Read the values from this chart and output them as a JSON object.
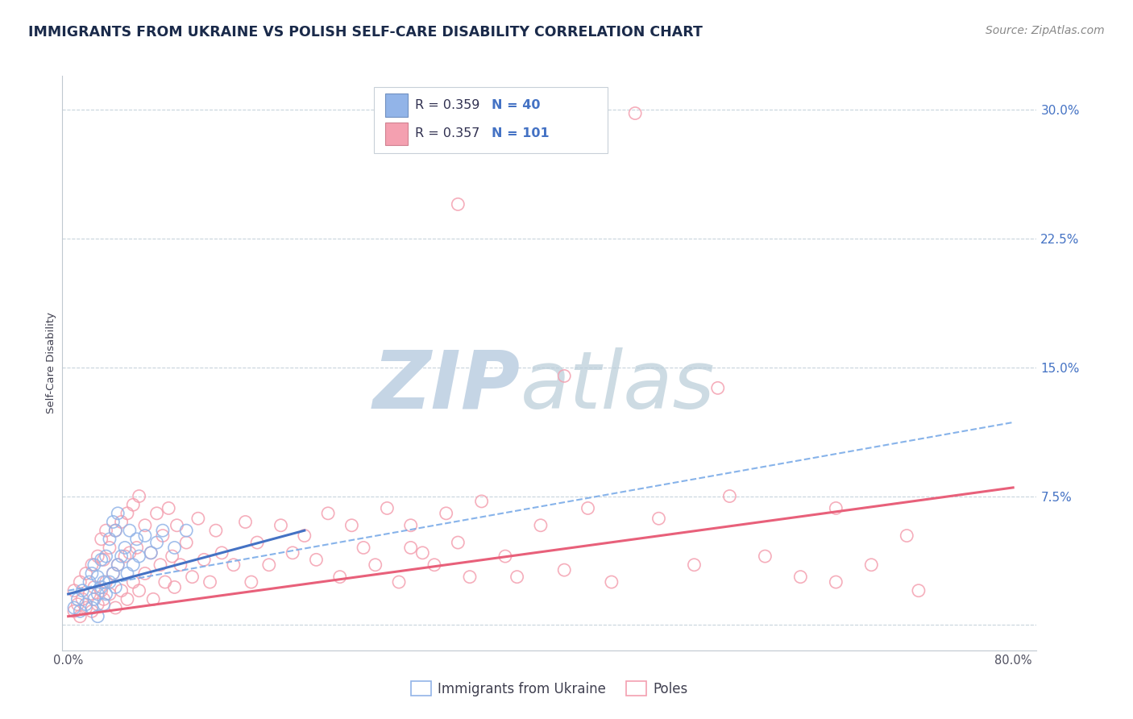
{
  "title": "IMMIGRANTS FROM UKRAINE VS POLISH SELF-CARE DISABILITY CORRELATION CHART",
  "source": "Source: ZipAtlas.com",
  "ylabel": "Self-Care Disability",
  "ytick_labels": [
    "",
    "7.5%",
    "15.0%",
    "22.5%",
    "30.0%"
  ],
  "ytick_values": [
    0.0,
    0.075,
    0.15,
    0.225,
    0.3
  ],
  "xtick_labels": [
    "0.0%",
    "",
    "",
    "",
    "",
    "",
    "",
    "",
    "80.0%"
  ],
  "xtick_values": [
    0.0,
    0.1,
    0.2,
    0.3,
    0.4,
    0.5,
    0.6,
    0.7,
    0.8
  ],
  "xlim": [
    -0.005,
    0.82
  ],
  "ylim": [
    -0.015,
    0.32
  ],
  "legend_r1": "R = 0.359",
  "legend_n1": "N = 40",
  "legend_r2": "R = 0.357",
  "legend_n2": "N = 101",
  "color_ukraine": "#92b4e8",
  "color_poles": "#f4a0b0",
  "color_ukraine_line": "#4472c4",
  "color_poles_line": "#e8607a",
  "color_dashed_line": "#7aabe8",
  "ukraine_scatter_x": [
    0.005,
    0.008,
    0.01,
    0.012,
    0.015,
    0.018,
    0.02,
    0.02,
    0.022,
    0.022,
    0.025,
    0.025,
    0.025,
    0.028,
    0.028,
    0.03,
    0.03,
    0.032,
    0.032,
    0.035,
    0.035,
    0.038,
    0.038,
    0.04,
    0.04,
    0.042,
    0.042,
    0.045,
    0.048,
    0.05,
    0.052,
    0.055,
    0.058,
    0.06,
    0.065,
    0.07,
    0.075,
    0.08,
    0.09,
    0.1
  ],
  "ukraine_scatter_y": [
    0.01,
    0.015,
    0.008,
    0.02,
    0.012,
    0.025,
    0.01,
    0.03,
    0.015,
    0.035,
    0.005,
    0.018,
    0.028,
    0.022,
    0.038,
    0.012,
    0.025,
    0.018,
    0.04,
    0.025,
    0.05,
    0.03,
    0.06,
    0.022,
    0.055,
    0.035,
    0.065,
    0.04,
    0.045,
    0.03,
    0.055,
    0.035,
    0.05,
    0.04,
    0.052,
    0.042,
    0.048,
    0.055,
    0.045,
    0.055
  ],
  "poles_scatter_x": [
    0.005,
    0.005,
    0.008,
    0.01,
    0.01,
    0.012,
    0.015,
    0.015,
    0.018,
    0.02,
    0.02,
    0.022,
    0.025,
    0.025,
    0.028,
    0.028,
    0.03,
    0.03,
    0.032,
    0.032,
    0.035,
    0.035,
    0.038,
    0.04,
    0.04,
    0.042,
    0.045,
    0.045,
    0.048,
    0.05,
    0.05,
    0.052,
    0.055,
    0.055,
    0.058,
    0.06,
    0.06,
    0.065,
    0.065,
    0.07,
    0.072,
    0.075,
    0.078,
    0.08,
    0.082,
    0.085,
    0.088,
    0.09,
    0.092,
    0.095,
    0.1,
    0.105,
    0.11,
    0.115,
    0.12,
    0.125,
    0.13,
    0.14,
    0.15,
    0.155,
    0.16,
    0.17,
    0.18,
    0.19,
    0.2,
    0.21,
    0.22,
    0.23,
    0.24,
    0.25,
    0.26,
    0.27,
    0.28,
    0.29,
    0.3,
    0.31,
    0.32,
    0.33,
    0.34,
    0.35,
    0.37,
    0.4,
    0.42,
    0.44,
    0.46,
    0.5,
    0.53,
    0.56,
    0.59,
    0.62,
    0.65,
    0.68,
    0.71,
    0.55,
    0.48,
    0.42,
    0.38,
    0.33,
    0.29,
    0.65,
    0.72
  ],
  "poles_scatter_y": [
    0.008,
    0.02,
    0.012,
    0.005,
    0.025,
    0.015,
    0.01,
    0.03,
    0.018,
    0.008,
    0.035,
    0.022,
    0.012,
    0.04,
    0.02,
    0.05,
    0.015,
    0.038,
    0.025,
    0.055,
    0.018,
    0.045,
    0.03,
    0.01,
    0.055,
    0.035,
    0.02,
    0.06,
    0.04,
    0.015,
    0.065,
    0.042,
    0.025,
    0.07,
    0.045,
    0.02,
    0.075,
    0.03,
    0.058,
    0.042,
    0.015,
    0.065,
    0.035,
    0.052,
    0.025,
    0.068,
    0.04,
    0.022,
    0.058,
    0.035,
    0.048,
    0.028,
    0.062,
    0.038,
    0.025,
    0.055,
    0.042,
    0.035,
    0.06,
    0.025,
    0.048,
    0.035,
    0.058,
    0.042,
    0.052,
    0.038,
    0.065,
    0.028,
    0.058,
    0.045,
    0.035,
    0.068,
    0.025,
    0.058,
    0.042,
    0.035,
    0.065,
    0.048,
    0.028,
    0.072,
    0.04,
    0.058,
    0.032,
    0.068,
    0.025,
    0.062,
    0.035,
    0.075,
    0.04,
    0.028,
    0.068,
    0.035,
    0.052,
    0.138,
    0.298,
    0.145,
    0.028,
    0.245,
    0.045,
    0.025,
    0.02
  ],
  "ukraine_line_x": [
    0.0,
    0.2
  ],
  "ukraine_line_y_start": 0.018,
  "ukraine_line_y_end": 0.055,
  "poles_line_x": [
    0.0,
    0.8
  ],
  "poles_line_y_start": 0.005,
  "poles_line_y_end": 0.08,
  "dashed_line_x": [
    0.0,
    0.8
  ],
  "dashed_line_y_start": 0.02,
  "dashed_line_y_end": 0.118
}
